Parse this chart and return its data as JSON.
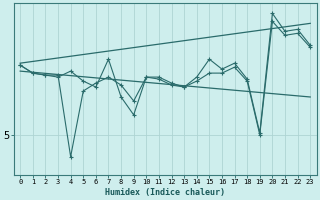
{
  "xlabel": "Humidex (Indice chaleur)",
  "x_values": [
    0,
    1,
    2,
    3,
    4,
    5,
    6,
    7,
    8,
    9,
    10,
    11,
    12,
    13,
    14,
    15,
    16,
    17,
    18,
    19,
    20,
    21,
    22,
    23
  ],
  "zigzag1": [
    6.75,
    6.55,
    6.5,
    6.5,
    4.45,
    6.1,
    6.3,
    6.45,
    6.25,
    5.85,
    6.45,
    6.4,
    6.25,
    6.2,
    6.35,
    6.55,
    6.55,
    6.7,
    6.35,
    5.0,
    7.85,
    7.5,
    7.55,
    7.2
  ],
  "zigzag2": [
    6.75,
    6.55,
    6.5,
    6.45,
    6.6,
    6.35,
    6.2,
    6.9,
    5.95,
    5.5,
    6.45,
    6.45,
    6.3,
    6.2,
    6.45,
    6.9,
    6.65,
    6.8,
    6.4,
    5.05,
    8.05,
    7.6,
    7.65,
    7.25
  ],
  "bg_color": "#ceeeed",
  "line_color": "#2a6b6b",
  "grid_color": "#aed4d3",
  "ylim": [
    4.0,
    8.3
  ],
  "xlim": [
    -0.5,
    23.5
  ]
}
